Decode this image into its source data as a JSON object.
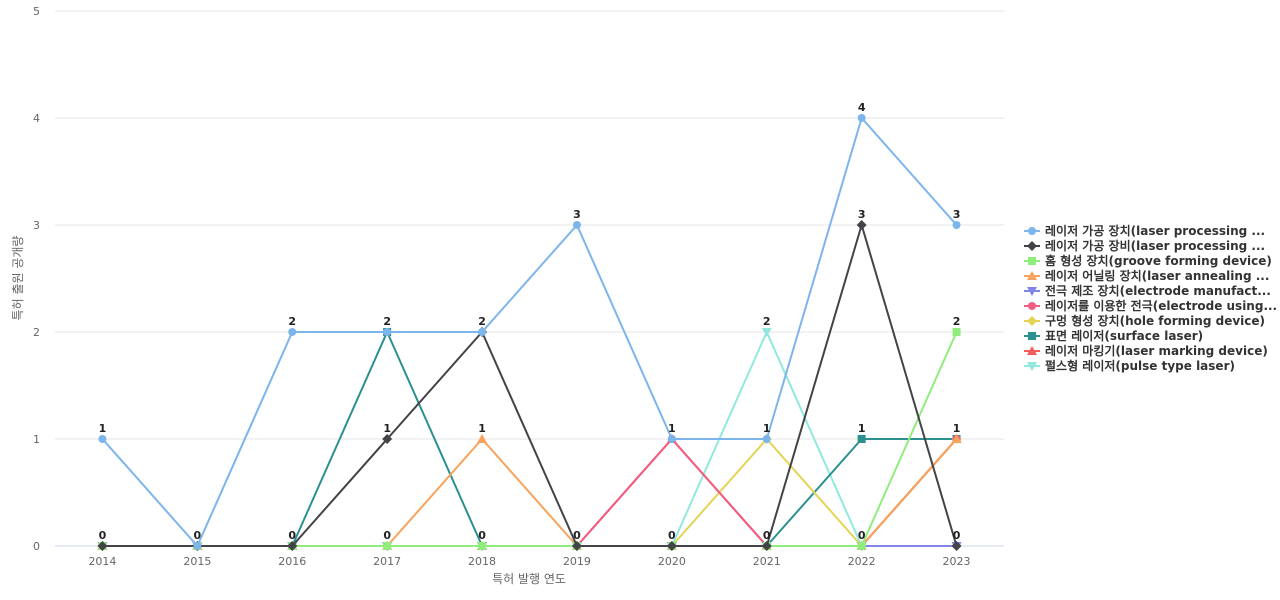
{
  "chart_data": {
    "type": "line",
    "xlabel": "특허 발행 연도",
    "ylabel": "특허 출원 공개량",
    "categories": [
      "2014",
      "2015",
      "2016",
      "2017",
      "2018",
      "2019",
      "2020",
      "2021",
      "2022",
      "2023"
    ],
    "ylim": [
      0,
      5
    ],
    "yticks": [
      "0",
      "1",
      "2",
      "3",
      "4",
      "5"
    ],
    "grid": true,
    "legend_position": "right",
    "series": [
      {
        "name": "레이저 가공 장치(laser processing ...",
        "color": "#7cb5ec",
        "marker": "circle",
        "values": [
          1,
          0,
          2,
          2,
          2,
          3,
          1,
          1,
          4,
          3
        ]
      },
      {
        "name": "레이저 가공 장비(laser processing ...",
        "color": "#434348",
        "marker": "diamond",
        "values": [
          0,
          0,
          0,
          1,
          2,
          0,
          0,
          0,
          3,
          0
        ]
      },
      {
        "name": "홈 형성 장치(groove forming device)",
        "color": "#90ed7d",
        "marker": "square",
        "values": [
          0,
          0,
          0,
          0,
          0,
          0,
          0,
          0,
          0,
          2
        ]
      },
      {
        "name": "레이저 어닐링 장치(laser annealing ...",
        "color": "#f7a35c",
        "marker": "triangle",
        "values": [
          0,
          0,
          0,
          0,
          1,
          0,
          0,
          0,
          0,
          1
        ]
      },
      {
        "name": "전극 제조 장치(electrode manufact...",
        "color": "#8085e9",
        "marker": "triangle-down",
        "values": [
          0,
          0,
          0,
          0,
          0,
          0,
          0,
          0,
          0,
          0
        ]
      },
      {
        "name": "레이저를 이용한 전극(electrode using...",
        "color": "#f15c80",
        "marker": "circle",
        "values": [
          0,
          0,
          0,
          0,
          0,
          0,
          1,
          0,
          0,
          1
        ]
      },
      {
        "name": "구멍 형성 장치(hole forming device)",
        "color": "#e4d354",
        "marker": "diamond",
        "values": [
          0,
          0,
          0,
          0,
          0,
          0,
          0,
          1,
          0,
          1
        ]
      },
      {
        "name": "표면 레이저(surface laser)",
        "color": "#2b908f",
        "marker": "square",
        "values": [
          0,
          0,
          0,
          2,
          0,
          0,
          0,
          0,
          1,
          1
        ]
      },
      {
        "name": "레이저 마킹기(laser marking device)",
        "color": "#f45b5b",
        "marker": "triangle",
        "values": [
          0,
          0,
          0,
          0,
          0,
          0,
          1,
          0,
          0,
          1
        ]
      },
      {
        "name": "펄스형 레이저(pulse type laser)",
        "color": "#91e8e1",
        "marker": "triangle-down",
        "values": [
          0,
          0,
          0,
          0,
          0,
          0,
          0,
          2,
          0,
          0
        ]
      }
    ],
    "data_labels": [
      {
        "x": "2014",
        "value": 1,
        "text": "1"
      },
      {
        "x": "2014",
        "value": 0,
        "text": "0"
      },
      {
        "x": "2015",
        "value": 0,
        "text": "0"
      },
      {
        "x": "2016",
        "value": 2,
        "text": "2"
      },
      {
        "x": "2016",
        "value": 0,
        "text": "0"
      },
      {
        "x": "2017",
        "value": 2,
        "text": "2"
      },
      {
        "x": "2017",
        "value": 1,
        "text": "1"
      },
      {
        "x": "2017",
        "value": 0,
        "text": "0"
      },
      {
        "x": "2018",
        "value": 2,
        "text": "2"
      },
      {
        "x": "2018",
        "value": 1,
        "text": "1"
      },
      {
        "x": "2018",
        "value": 0,
        "text": "0"
      },
      {
        "x": "2019",
        "value": 3,
        "text": "3"
      },
      {
        "x": "2019",
        "value": 0,
        "text": "0"
      },
      {
        "x": "2020",
        "value": 1,
        "text": "1"
      },
      {
        "x": "2020",
        "value": 0,
        "text": "0"
      },
      {
        "x": "2021",
        "value": 2,
        "text": "2"
      },
      {
        "x": "2021",
        "value": 1,
        "text": "1"
      },
      {
        "x": "2021",
        "value": 0,
        "text": "0"
      },
      {
        "x": "2022",
        "value": 4,
        "text": "4"
      },
      {
        "x": "2022",
        "value": 3,
        "text": "3"
      },
      {
        "x": "2022",
        "value": 1,
        "text": "1"
      },
      {
        "x": "2022",
        "value": 0,
        "text": "0"
      },
      {
        "x": "2023",
        "value": 3,
        "text": "3"
      },
      {
        "x": "2023",
        "value": 2,
        "text": "2"
      },
      {
        "x": "2023",
        "value": 1,
        "text": "1"
      },
      {
        "x": "2023",
        "value": 0,
        "text": "0"
      }
    ]
  }
}
